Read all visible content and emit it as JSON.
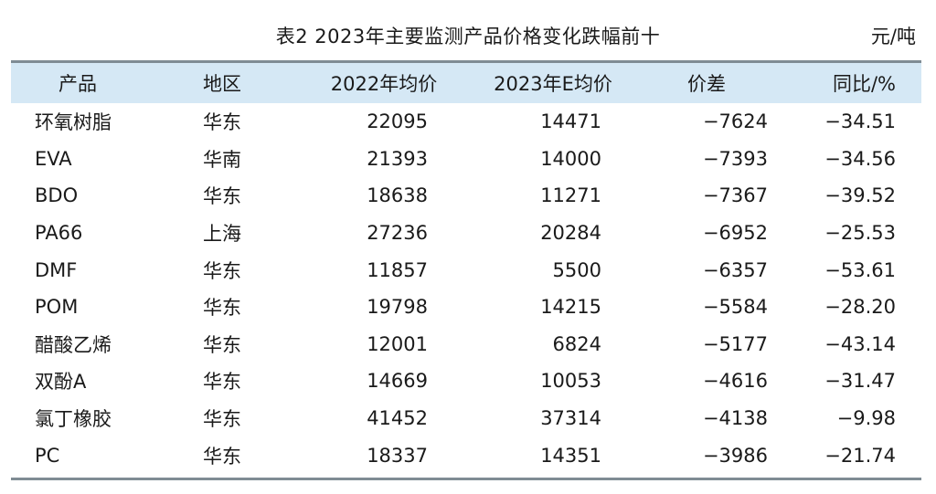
{
  "title": "表2  2023年主要监测产品价格变化跌幅前十",
  "unit": "元/吨",
  "headers": {
    "product": "产品",
    "region": "地区",
    "price_2022": "2022年均价",
    "price_2023e": "2023年E均价",
    "diff": "价差",
    "yoy": "同比/%"
  },
  "rows": [
    {
      "product": "环氧树脂",
      "region": "华东",
      "price_2022": "22095",
      "price_2023e": "14471",
      "diff": "−7624",
      "yoy": "−34.51"
    },
    {
      "product": "EVA",
      "region": "华南",
      "price_2022": "21393",
      "price_2023e": "14000",
      "diff": "−7393",
      "yoy": "−34.56"
    },
    {
      "product": "BDO",
      "region": "华东",
      "price_2022": "18638",
      "price_2023e": "11271",
      "diff": "−7367",
      "yoy": "−39.52"
    },
    {
      "product": "PA66",
      "region": "上海",
      "price_2022": "27236",
      "price_2023e": "20284",
      "diff": "−6952",
      "yoy": "−25.53"
    },
    {
      "product": "DMF",
      "region": "华东",
      "price_2022": "11857",
      "price_2023e": "5500",
      "diff": "−6357",
      "yoy": "−53.61"
    },
    {
      "product": "POM",
      "region": "华东",
      "price_2022": "19798",
      "price_2023e": "14215",
      "diff": "−5584",
      "yoy": "−28.20"
    },
    {
      "product": "醋酸乙烯",
      "region": "华东",
      "price_2022": "12001",
      "price_2023e": "6824",
      "diff": "−5177",
      "yoy": "−43.14"
    },
    {
      "product": "双酚A",
      "region": "华东",
      "price_2022": "14669",
      "price_2023e": "10053",
      "diff": "−4616",
      "yoy": "−31.47"
    },
    {
      "product": "氯丁橡胶",
      "region": "华东",
      "price_2022": "41452",
      "price_2023e": "37314",
      "diff": "−4138",
      "yoy": "−9.98"
    },
    {
      "product": "PC",
      "region": "华东",
      "price_2022": "18337",
      "price_2023e": "14351",
      "diff": "−3986",
      "yoy": "−21.74"
    }
  ]
}
